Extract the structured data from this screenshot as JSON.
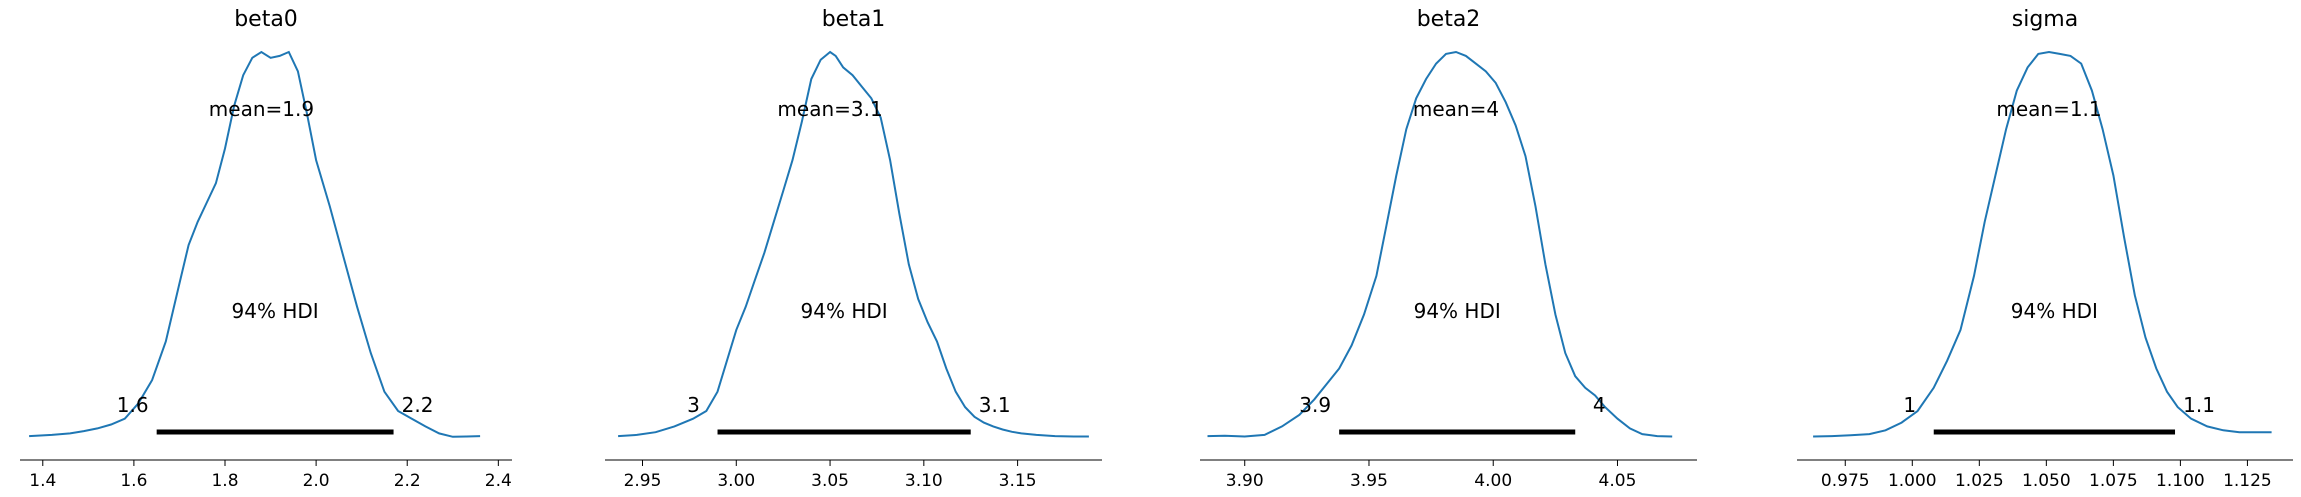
{
  "chart_data": [
    {
      "type": "line",
      "title": "beta0",
      "mean_label": "mean=1.9",
      "hdi_label": "94% HDI",
      "hdi_prob": 0.94,
      "hdi": [
        1.65,
        2.17
      ],
      "hdi_low_label": "1.6",
      "hdi_high_label": "2.2",
      "xlim": [
        1.35,
        2.43
      ],
      "xticks": [
        1.4,
        1.6,
        1.8,
        2.0,
        2.2,
        2.4
      ],
      "xtick_labels": [
        "1.4",
        "1.6",
        "1.8",
        "2.0",
        "2.2",
        "2.4"
      ],
      "x": [
        1.37,
        1.42,
        1.46,
        1.49,
        1.52,
        1.55,
        1.58,
        1.61,
        1.64,
        1.67,
        1.7,
        1.72,
        1.74,
        1.76,
        1.78,
        1.8,
        1.82,
        1.84,
        1.86,
        1.88,
        1.9,
        1.92,
        1.94,
        1.96,
        1.98,
        2.0,
        2.03,
        2.06,
        2.09,
        2.12,
        2.15,
        2.18,
        2.21,
        2.24,
        2.27,
        2.3,
        2.33,
        2.36
      ],
      "y": [
        0.005,
        0.008,
        0.012,
        0.018,
        0.025,
        0.035,
        0.05,
        0.09,
        0.15,
        0.25,
        0.4,
        0.5,
        0.56,
        0.61,
        0.66,
        0.75,
        0.86,
        0.94,
        0.985,
        1.0,
        0.985,
        0.99,
        1.0,
        0.95,
        0.84,
        0.72,
        0.6,
        0.47,
        0.34,
        0.22,
        0.12,
        0.07,
        0.05,
        0.03,
        0.012,
        0.003,
        0.004,
        0.005
      ]
    },
    {
      "type": "line",
      "title": "beta1",
      "mean_label": "mean=3.1",
      "hdi_label": "94% HDI",
      "hdi_prob": 0.94,
      "hdi": [
        2.99,
        3.125
      ],
      "hdi_low_label": "3",
      "hdi_high_label": "3.1",
      "xlim": [
        2.93,
        3.195
      ],
      "xticks": [
        2.95,
        3.0,
        3.05,
        3.1,
        3.15
      ],
      "xtick_labels": [
        "2.95",
        "3.00",
        "3.05",
        "3.10",
        "3.15"
      ],
      "x": [
        2.937,
        2.947,
        2.957,
        2.967,
        2.977,
        2.984,
        2.99,
        2.995,
        3.0,
        3.005,
        3.01,
        3.015,
        3.02,
        3.025,
        3.03,
        3.035,
        3.04,
        3.045,
        3.05,
        3.053,
        3.057,
        3.062,
        3.067,
        3.072,
        3.077,
        3.082,
        3.087,
        3.092,
        3.097,
        3.102,
        3.107,
        3.112,
        3.117,
        3.122,
        3.127,
        3.132,
        3.137,
        3.142,
        3.147,
        3.152,
        3.16,
        3.17,
        3.18,
        3.188
      ],
      "y": [
        0.005,
        0.008,
        0.015,
        0.03,
        0.05,
        0.07,
        0.12,
        0.2,
        0.28,
        0.34,
        0.41,
        0.48,
        0.56,
        0.64,
        0.72,
        0.82,
        0.93,
        0.98,
        1.0,
        0.99,
        0.96,
        0.94,
        0.91,
        0.88,
        0.83,
        0.72,
        0.58,
        0.45,
        0.36,
        0.3,
        0.25,
        0.18,
        0.12,
        0.08,
        0.055,
        0.04,
        0.03,
        0.022,
        0.016,
        0.012,
        0.008,
        0.005,
        0.004,
        0.004
      ]
    },
    {
      "type": "line",
      "title": "beta2",
      "mean_label": "mean=4",
      "hdi_label": "94% HDI",
      "hdi_prob": 0.94,
      "hdi": [
        3.938,
        4.033
      ],
      "hdi_low_label": "3.9",
      "hdi_high_label": "4",
      "xlim": [
        3.882,
        4.082
      ],
      "xticks": [
        3.9,
        3.95,
        4.0,
        4.05
      ],
      "xtick_labels": [
        "3.90",
        "3.95",
        "4.00",
        "4.05"
      ],
      "x": [
        3.885,
        3.892,
        3.9,
        3.908,
        3.915,
        3.922,
        3.928,
        3.933,
        3.938,
        3.943,
        3.948,
        3.953,
        3.957,
        3.961,
        3.965,
        3.969,
        3.973,
        3.977,
        3.981,
        3.985,
        3.989,
        3.993,
        3.997,
        4.001,
        4.005,
        4.009,
        4.013,
        4.017,
        4.021,
        4.025,
        4.029,
        4.033,
        4.037,
        4.041,
        4.045,
        4.05,
        4.055,
        4.06,
        4.066,
        4.072
      ],
      "y": [
        0.005,
        0.006,
        0.004,
        0.008,
        0.03,
        0.06,
        0.1,
        0.14,
        0.18,
        0.24,
        0.32,
        0.42,
        0.55,
        0.68,
        0.8,
        0.88,
        0.93,
        0.97,
        0.995,
        1.0,
        0.99,
        0.97,
        0.95,
        0.92,
        0.87,
        0.81,
        0.73,
        0.6,
        0.45,
        0.32,
        0.22,
        0.16,
        0.13,
        0.11,
        0.08,
        0.05,
        0.025,
        0.01,
        0.005,
        0.004
      ]
    },
    {
      "type": "line",
      "title": "sigma",
      "mean_label": "mean=1.1",
      "hdi_label": "94% HDI",
      "hdi_prob": 0.94,
      "hdi": [
        1.008,
        1.098
      ],
      "hdi_low_label": "1",
      "hdi_high_label": "1.1",
      "xlim": [
        0.957,
        1.142
      ],
      "xticks": [
        0.975,
        1.0,
        1.025,
        1.05,
        1.075,
        1.1,
        1.125
      ],
      "xtick_labels": [
        "0.975",
        "1.000",
        "1.025",
        "1.050",
        "1.075",
        "1.100",
        "1.125"
      ],
      "x": [
        0.963,
        0.97,
        0.977,
        0.984,
        0.99,
        0.996,
        1.002,
        1.008,
        1.013,
        1.018,
        1.023,
        1.027,
        1.031,
        1.035,
        1.039,
        1.043,
        1.047,
        1.051,
        1.055,
        1.059,
        1.063,
        1.067,
        1.071,
        1.075,
        1.079,
        1.083,
        1.087,
        1.091,
        1.095,
        1.099,
        1.104,
        1.11,
        1.116,
        1.122,
        1.128,
        1.134
      ],
      "y": [
        0.004,
        0.005,
        0.007,
        0.01,
        0.02,
        0.04,
        0.07,
        0.13,
        0.2,
        0.28,
        0.42,
        0.56,
        0.68,
        0.8,
        0.9,
        0.96,
        0.995,
        1.0,
        0.995,
        0.99,
        0.97,
        0.9,
        0.8,
        0.68,
        0.52,
        0.37,
        0.26,
        0.18,
        0.12,
        0.08,
        0.05,
        0.03,
        0.02,
        0.015,
        0.015,
        0.015
      ]
    }
  ]
}
